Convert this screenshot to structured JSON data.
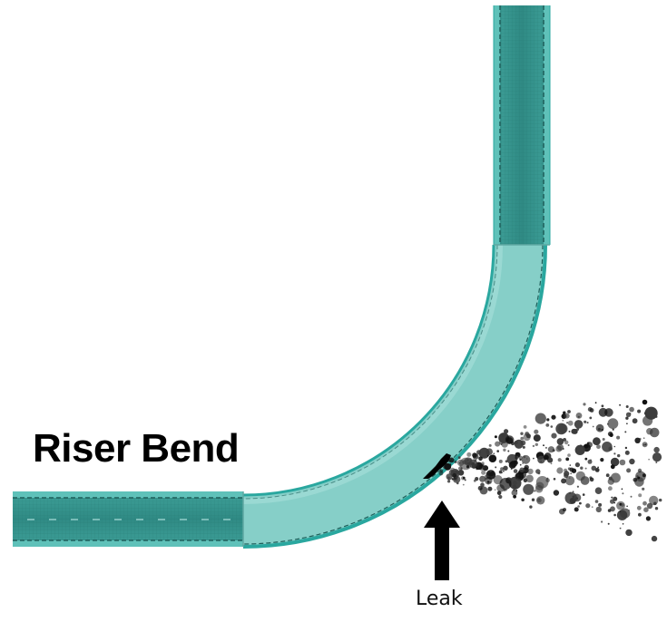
{
  "diagram": {
    "title": "Riser Bend",
    "leak_label": "Leak",
    "colors": {
      "pipe_fill": "#2f8f88",
      "pipe_fill_light": "#8fd3cd",
      "pipe_edge": "#2aa79f",
      "pipe_dark": "#1f6661",
      "bubble": "#111111",
      "arrow": "#000000"
    },
    "icons": {
      "arrow": "up-arrow-icon",
      "leak": "leak-crack-icon"
    }
  }
}
